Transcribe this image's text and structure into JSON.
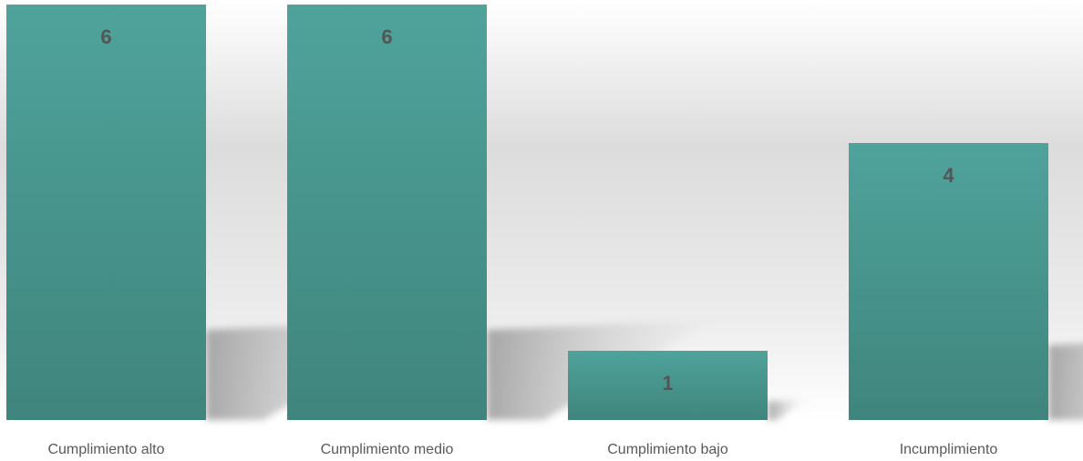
{
  "chart_data": {
    "type": "bar",
    "categories": [
      "Cumplimiento alto",
      "Cumplimiento medio",
      "Cumplimiento bajo",
      "Incumplimiento"
    ],
    "values": [
      6,
      6,
      1,
      4
    ],
    "title": "",
    "xlabel": "",
    "ylabel": "",
    "ylim": [
      0,
      6
    ],
    "grid": false,
    "legend": "none",
    "data_labels": true,
    "colors": {
      "bar_top": "#4fa39b",
      "bar_bottom": "#3f857d",
      "label": "#555555",
      "category_label": "#595959",
      "background_top": "#ffffff",
      "background_mid": "#dedede"
    }
  }
}
